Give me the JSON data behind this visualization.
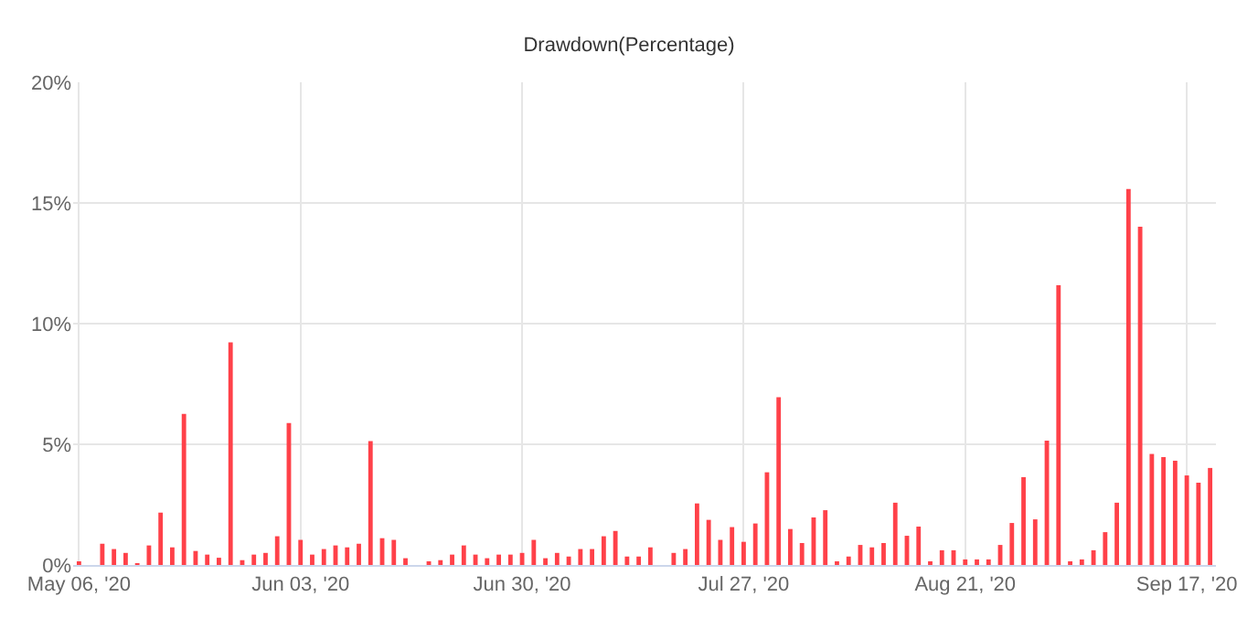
{
  "chart_data": {
    "type": "bar",
    "title": "Drawdown(Percentage)",
    "categories": [
      "May 06, '20",
      null,
      null,
      null,
      null,
      null,
      null,
      null,
      null,
      null,
      null,
      null,
      null,
      null,
      null,
      null,
      null,
      null,
      null,
      "Jun 03, '20",
      null,
      null,
      null,
      null,
      null,
      null,
      null,
      null,
      null,
      null,
      null,
      null,
      null,
      null,
      null,
      null,
      null,
      null,
      "Jun 30, '20",
      null,
      null,
      null,
      null,
      null,
      null,
      null,
      null,
      null,
      null,
      null,
      null,
      null,
      null,
      null,
      null,
      null,
      null,
      "Jul 27, '20",
      null,
      null,
      null,
      null,
      null,
      null,
      null,
      null,
      null,
      null,
      null,
      null,
      null,
      null,
      null,
      null,
      null,
      null,
      "Aug 21, '20",
      null,
      null,
      null,
      null,
      null,
      null,
      null,
      null,
      null,
      null,
      null,
      null,
      null,
      null,
      null,
      null,
      null,
      null,
      "Sep 17, '20",
      null,
      null
    ],
    "values": [
      0.13,
      0,
      0.88,
      0.66,
      0.5,
      0.05,
      0.81,
      2.17,
      0.73,
      6.26,
      0.58,
      0.43,
      0.3,
      9.22,
      0.2,
      0.43,
      0.5,
      1.19,
      5.88,
      1.04,
      0.43,
      0.66,
      0.81,
      0.73,
      0.88,
      5.13,
      1.11,
      1.04,
      0.28,
      0,
      0.13,
      0.2,
      0.43,
      0.81,
      0.43,
      0.28,
      0.43,
      0.43,
      0.5,
      1.04,
      0.28,
      0.5,
      0.35,
      0.66,
      0.66,
      1.19,
      1.41,
      0.35,
      0.35,
      0.73,
      0,
      0.5,
      0.66,
      2.55,
      1.87,
      1.04,
      1.57,
      0.96,
      1.72,
      3.84,
      6.95,
      1.49,
      0.91,
      1.97,
      2.27,
      0.08,
      0.35,
      0.83,
      0.73,
      0.91,
      2.58,
      1.21,
      1.59,
      0.15,
      0.61,
      0.61,
      0.23,
      0.23,
      0.23,
      0.83,
      1.74,
      3.64,
      1.89,
      5.15,
      11.59,
      0.08,
      0.23,
      0.61,
      1.36,
      2.58,
      15.58,
      14.02,
      4.6,
      4.47,
      4.32,
      3.71,
      3.41,
      4.02
    ],
    "color": "#ff4149",
    "ylim": [
      0,
      20
    ],
    "yticks": [
      {
        "value": 0,
        "label": "0%"
      },
      {
        "value": 5,
        "label": "5%"
      },
      {
        "value": 10,
        "label": "10%"
      },
      {
        "value": 15,
        "label": "15%"
      },
      {
        "value": 20,
        "label": "20%"
      }
    ],
    "grid": true
  }
}
